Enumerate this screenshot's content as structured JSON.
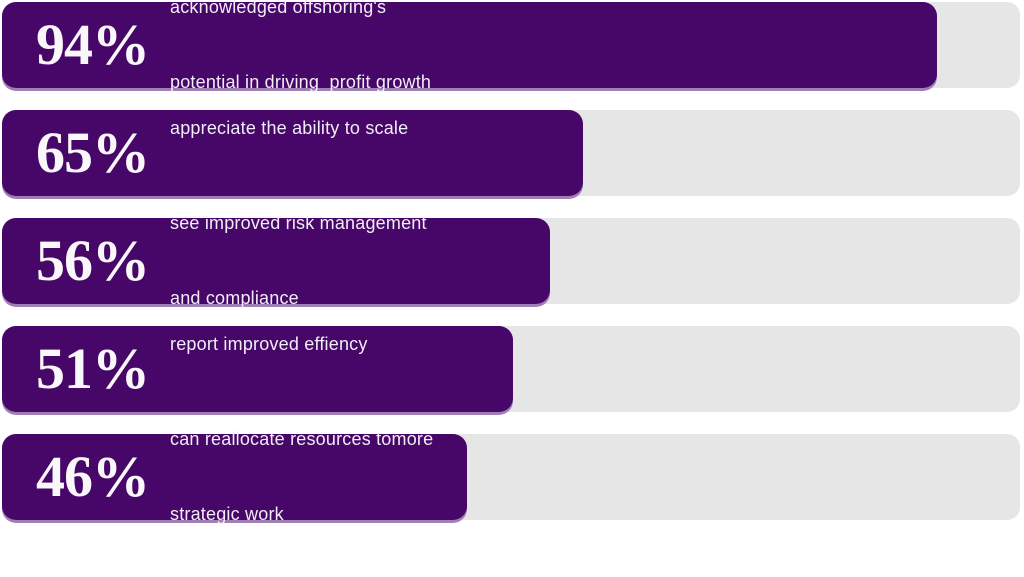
{
  "chart_data": {
    "type": "bar",
    "orientation": "horizontal",
    "title": "",
    "categories": [
      "acknowledged offshoring's potential in driving profit growth",
      "appreciate the ability to scale",
      "see improved risk management and compliance",
      "report improved effiency",
      "can reallocate resources tomore strategic work"
    ],
    "values": [
      94,
      65,
      56,
      51,
      46
    ],
    "value_labels": [
      "94%",
      "65%",
      "56%",
      "51%",
      "46%"
    ],
    "xlim": [
      0,
      100
    ],
    "grid": false,
    "legend": false,
    "bar_widths_pct": [
      91.8,
      57.1,
      53.8,
      50.2,
      45.7
    ],
    "colors": {
      "bar": "#460769",
      "bar_shadow": "#a07fb5",
      "track": "#e7e6e7",
      "value_text": "#faf7fb",
      "label_text": "#f2edf6",
      "background": "#ffffff"
    }
  },
  "rows": [
    {
      "value": "94%",
      "label_line1": "acknowledged offshoring's",
      "label_line2": "potential in driving  profit growth"
    },
    {
      "value": "65%",
      "label_line1": "appreciate the ability to scale",
      "label_line2": ""
    },
    {
      "value": "56%",
      "label_line1": "see improved risk management",
      "label_line2": "and compliance"
    },
    {
      "value": "51%",
      "label_line1": "report improved effiency",
      "label_line2": ""
    },
    {
      "value": "46%",
      "label_line1": "can reallocate resources tomore",
      "label_line2": "strategic work"
    }
  ]
}
